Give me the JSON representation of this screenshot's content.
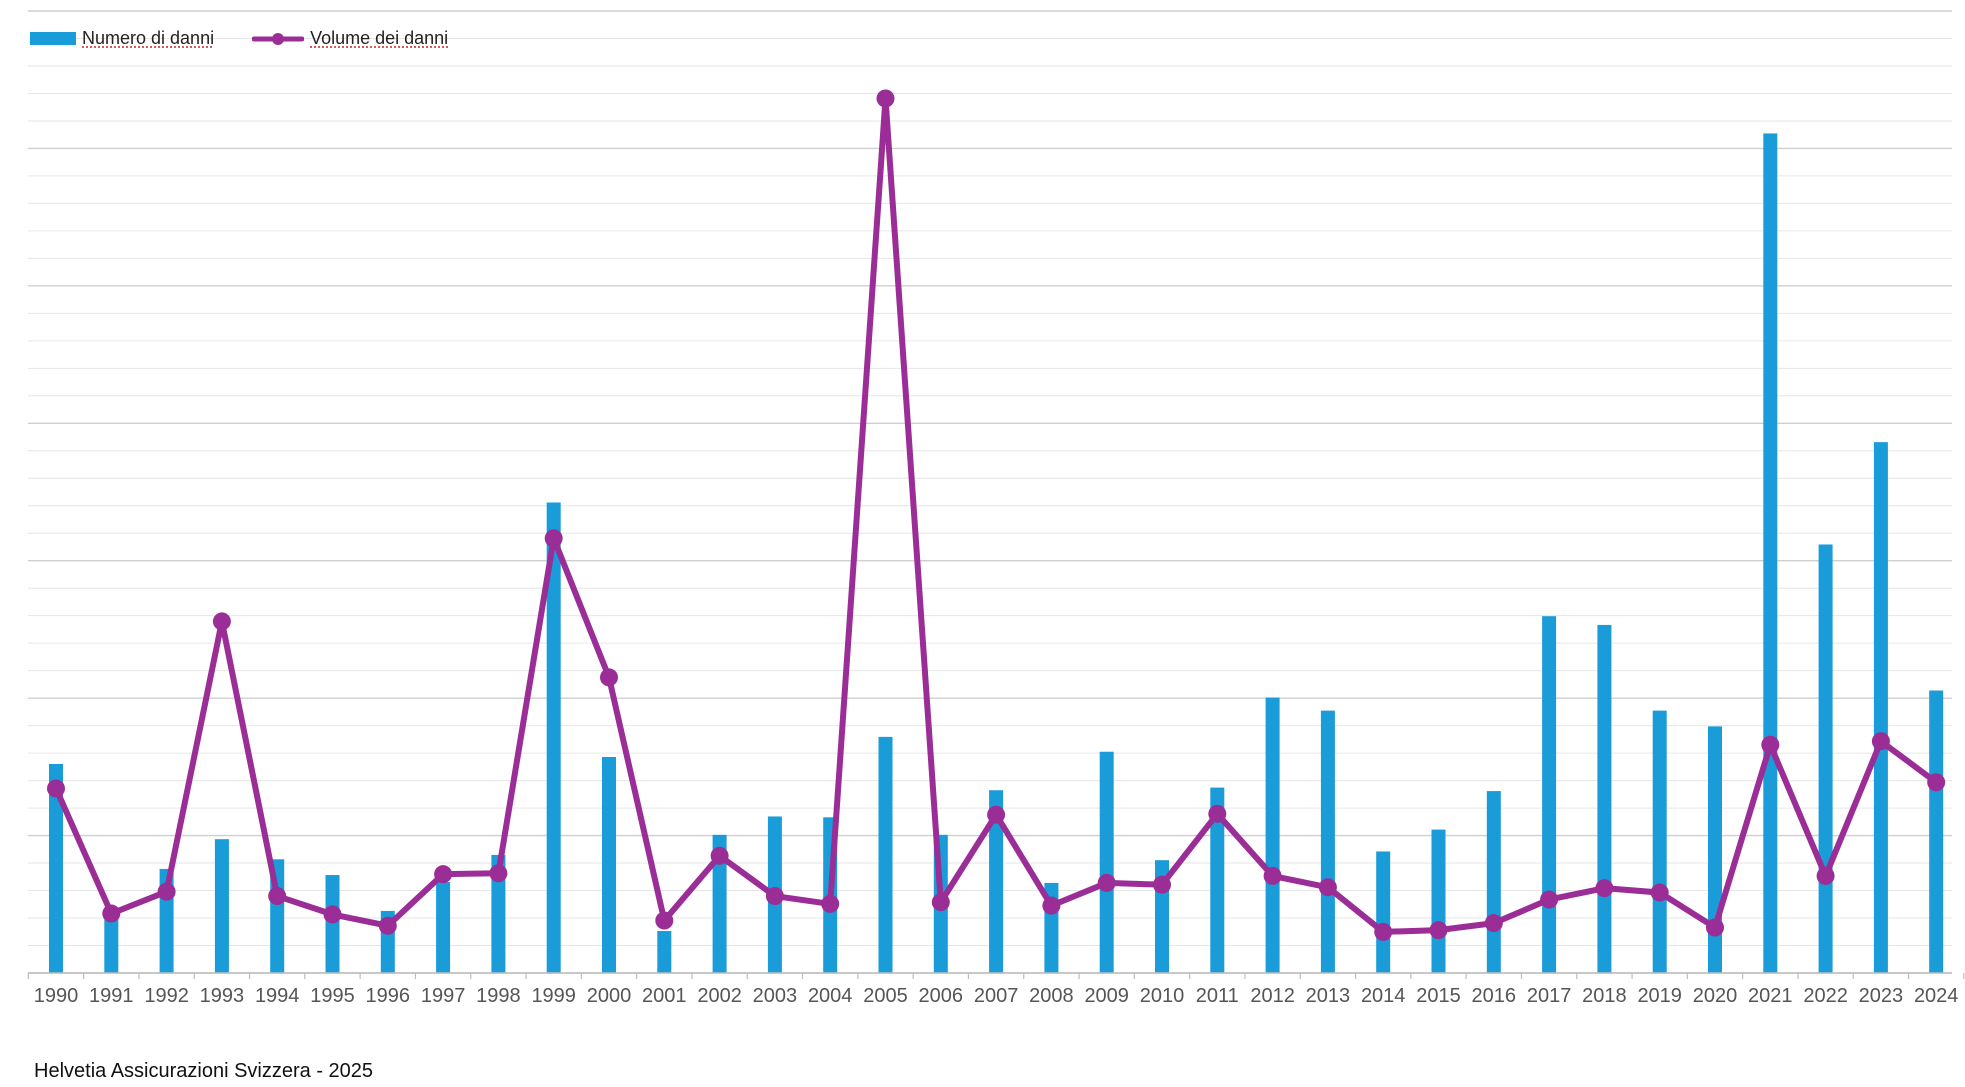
{
  "legend": {
    "bar_label": "Numero di danni",
    "line_label": "Volume dei danni"
  },
  "source": "Helvetia Assicurazioni Svizzera - 2025",
  "colors": {
    "bar": "#1a9cd8",
    "line": "#9b2d96",
    "grid": "#e6e6e6",
    "grid_major": "#cfcfcf"
  },
  "chart_data": {
    "type": "bar",
    "categories": [
      "1990",
      "1991",
      "1992",
      "1993",
      "1994",
      "1995",
      "1996",
      "1997",
      "1998",
      "1999",
      "2000",
      "2001",
      "2002",
      "2003",
      "2004",
      "2005",
      "2006",
      "2007",
      "2008",
      "2009",
      "2010",
      "2011",
      "2012",
      "2013",
      "2014",
      "2015",
      "2016",
      "2017",
      "2018",
      "2019",
      "2020",
      "2021",
      "2022",
      "2023",
      "2024"
    ],
    "series": [
      {
        "name": "Numero di danni",
        "type": "bar",
        "values": [
          23.9,
          7.4,
          11.9,
          15.3,
          13.0,
          11.2,
          7.1,
          10.4,
          13.5,
          53.8,
          24.7,
          4.8,
          15.8,
          17.9,
          17.8,
          27.0,
          15.8,
          20.9,
          10.3,
          25.3,
          12.9,
          21.2,
          31.5,
          30.0,
          13.9,
          16.4,
          20.8,
          40.8,
          39.8,
          30.0,
          28.2,
          96.0,
          49.0,
          60.7,
          32.3
        ]
      },
      {
        "name": "Volume dei danni",
        "type": "line",
        "values": [
          21.1,
          6.8,
          9.3,
          40.2,
          8.8,
          6.7,
          5.4,
          11.3,
          11.4,
          49.7,
          33.8,
          6.0,
          13.4,
          8.8,
          7.9,
          100.0,
          8.1,
          18.1,
          7.7,
          10.3,
          10.1,
          18.2,
          11.1,
          9.8,
          4.7,
          4.9,
          5.7,
          8.4,
          9.7,
          9.2,
          5.2,
          26.1,
          11.1,
          26.5,
          21.8
        ]
      }
    ],
    "ylim": [
      0,
      110
    ],
    "grid": true,
    "legend_position": "top-left",
    "ytick_labels_shown": false
  }
}
